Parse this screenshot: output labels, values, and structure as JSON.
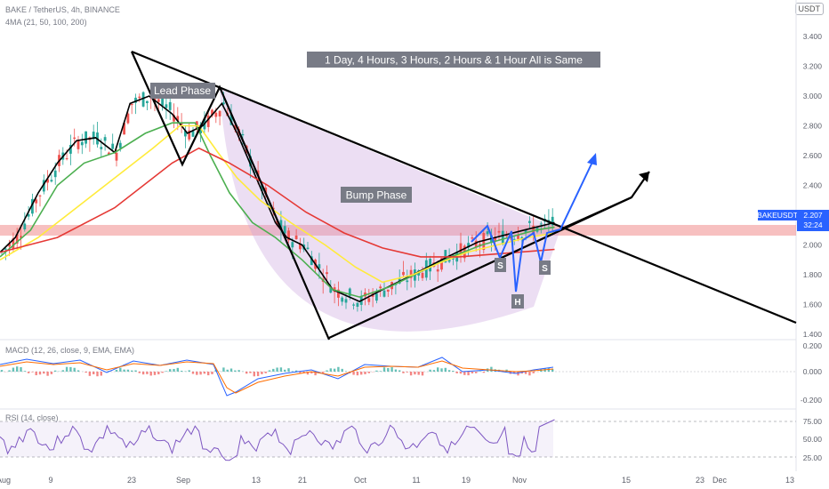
{
  "header": {
    "symbol_line": "BAKE / TetherUS, 4h, BINANCE",
    "ma_line": "4MA (21, 50, 100, 200)",
    "currency": "USDT"
  },
  "chart_data": [
    {
      "type": "line",
      "panel": "price",
      "title": "BAKE / TetherUS, 4h, BINANCE",
      "x_ticks": [
        "Aug",
        "9",
        "23",
        "Sep",
        "13",
        "21",
        "Oct",
        "11",
        "19",
        "Nov",
        "15",
        "23",
        "Dec",
        "13"
      ],
      "y_ticks": [
        "3.400",
        "3.200",
        "3.000",
        "2.800",
        "2.600",
        "2.400",
        "2.200",
        "2.000",
        "1.800",
        "1.600",
        "1.400"
      ],
      "ylim": [
        1.35,
        3.45
      ],
      "last_price": {
        "symbol": "BAKEUSDT",
        "value": "2.207",
        "countdown": "32:24"
      },
      "series": [
        {
          "name": "MA 21",
          "color": "#000000",
          "x": [
            0,
            4,
            10,
            15,
            20,
            25,
            30,
            34,
            39,
            45,
            49,
            53,
            58,
            62,
            67,
            72,
            75,
            79,
            83,
            87,
            94,
            100,
            108,
            117,
            125,
            137,
            145
          ],
          "y": [
            1.95,
            2.05,
            2.35,
            2.55,
            2.7,
            2.72,
            2.62,
            2.95,
            3.0,
            2.88,
            2.75,
            2.8,
            2.95,
            2.75,
            2.45,
            2.15,
            2.05,
            2.0,
            1.85,
            1.7,
            1.62,
            1.7,
            1.8,
            1.92,
            2.02,
            2.1,
            2.15
          ]
        },
        {
          "name": "MA 50",
          "color": "#4caf50",
          "x": [
            0,
            8,
            15,
            22,
            30,
            38,
            45,
            51,
            55,
            60,
            66,
            72,
            79,
            87,
            94,
            102,
            110,
            118,
            126,
            133,
            140,
            145
          ],
          "y": [
            1.92,
            2.1,
            2.4,
            2.55,
            2.62,
            2.75,
            2.82,
            2.82,
            2.6,
            2.35,
            2.15,
            2.05,
            1.9,
            1.7,
            1.65,
            1.72,
            1.82,
            1.92,
            2.0,
            2.05,
            2.1,
            2.12
          ]
        },
        {
          "name": "MA 100",
          "color": "#ffeb3b",
          "x": [
            0,
            10,
            20,
            30,
            40,
            47,
            52,
            57,
            62,
            68,
            76,
            85,
            93,
            100,
            108,
            115,
            122,
            130,
            138,
            145
          ],
          "y": [
            1.9,
            2.05,
            2.25,
            2.45,
            2.65,
            2.8,
            2.8,
            2.62,
            2.45,
            2.3,
            2.15,
            2.0,
            1.85,
            1.75,
            1.8,
            1.88,
            1.95,
            2.0,
            2.05,
            2.08
          ]
        },
        {
          "name": "MA 200",
          "color": "#e53935",
          "x": [
            0,
            15,
            30,
            45,
            52,
            60,
            70,
            80,
            90,
            100,
            110,
            120,
            130,
            140,
            145
          ],
          "y": [
            1.95,
            2.05,
            2.25,
            2.55,
            2.65,
            2.55,
            2.4,
            2.22,
            2.08,
            1.98,
            1.92,
            1.92,
            1.94,
            1.96,
            1.97
          ]
        }
      ],
      "annotations": {
        "title_note": "1 Day, 4 Hours, 3 Hours, 2 Hours & 1 Hour All is Same",
        "lead_phase": "Lead Phase",
        "bump_phase": "Bump Phase",
        "left_shoulder": "S",
        "head": "H",
        "right_shoulder": "S"
      },
      "grid": false
    },
    {
      "type": "line",
      "panel": "macd",
      "title": "MACD (12, 26, close, 9, EMA, EMA)",
      "y_ticks": [
        "0.200",
        "0.000",
        "-0.200"
      ],
      "ylim": [
        -0.25,
        0.25
      ]
    },
    {
      "type": "line",
      "panel": "rsi",
      "title": "RSI (14, close)",
      "y_ticks": [
        "75.00",
        "50.00",
        "25.00"
      ],
      "ylim": [
        20,
        80
      ],
      "bands": [
        30,
        70
      ]
    }
  ]
}
